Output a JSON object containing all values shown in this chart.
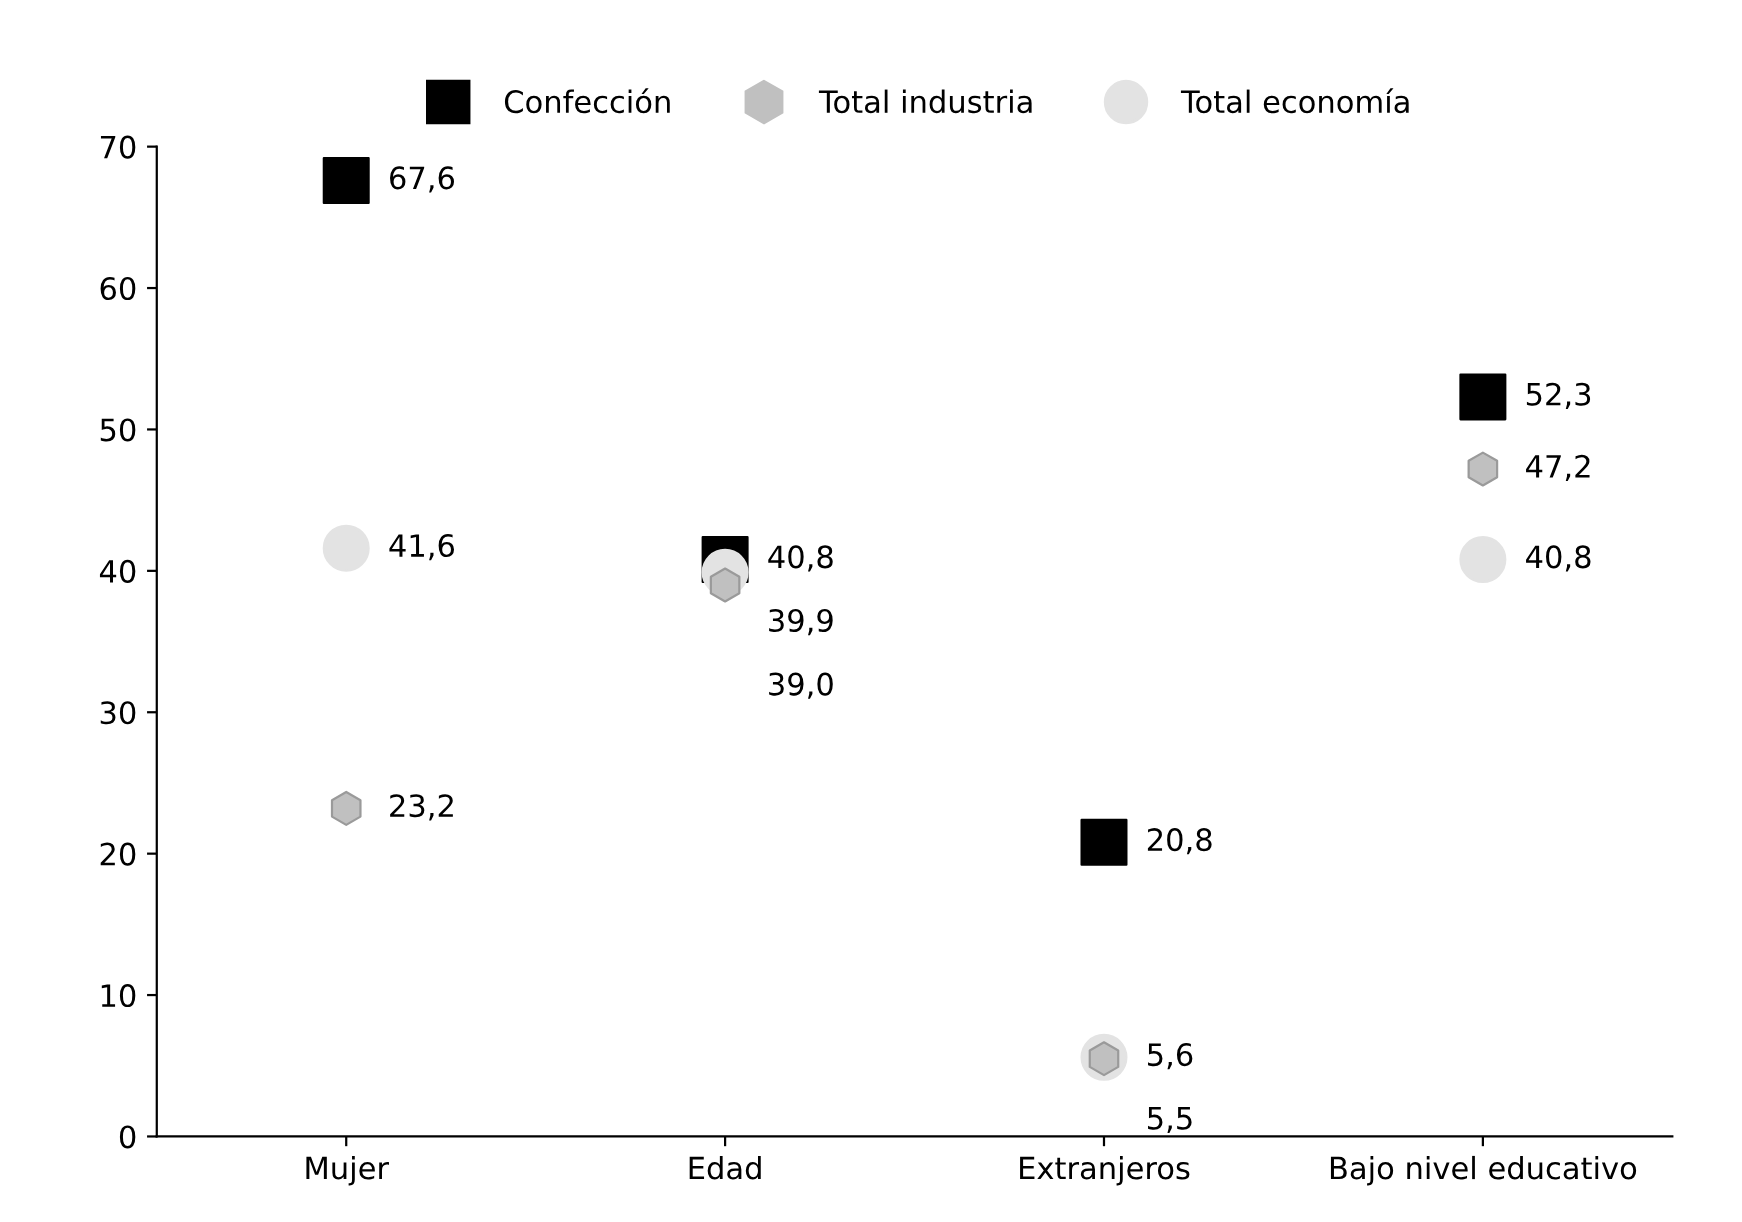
{
  "chart_data": {
    "type": "scatter",
    "categories": [
      "Mujer",
      "Edad",
      "Extranjeros",
      "Bajo nivel educativo"
    ],
    "series": [
      {
        "name": "Confección",
        "color": "#000000",
        "marker": "square",
        "values": [
          67.6,
          40.8,
          20.8,
          52.3
        ],
        "value_labels": [
          "67,6",
          "40,8",
          "20,8",
          "52,3"
        ]
      },
      {
        "name": "Total industria",
        "color": "#c0c0c0",
        "values": [
          23.2,
          39.0,
          5.5,
          47.2
        ],
        "value_labels": [
          "23,2",
          "39,0",
          "5,5",
          "47,2"
        ]
      },
      {
        "name": "Total economía",
        "color": "#e3e3e3",
        "marker": "circle",
        "values": [
          41.6,
          39.9,
          5.6,
          40.8
        ],
        "value_labels": [
          "41,6",
          "39,9",
          "5,6",
          "40,8"
        ]
      }
    ],
    "ylim": [
      0,
      70
    ],
    "yticks": [
      0,
      10,
      20,
      30,
      40,
      50,
      60,
      70
    ],
    "grid": false,
    "legend": "top"
  }
}
